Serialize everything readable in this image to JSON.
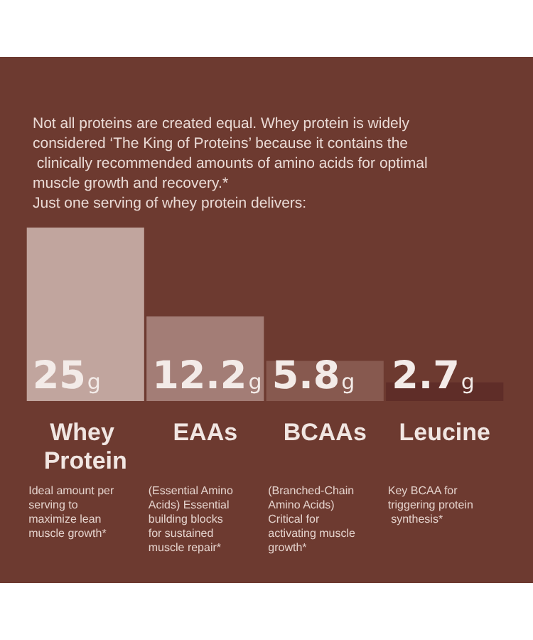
{
  "chart_data": {
    "type": "bar",
    "title": "Not all proteins are created equal. Whey protein is widely considered ‘The King of Proteins’ because it contains the clinically recommended amounts of amino acids for optimal muscle growth and recovery.*\nJust one serving of whey protein delivers:",
    "categories": [
      "Whey Protein",
      "EAAs",
      "BCAAs",
      "Leucine"
    ],
    "values": [
      25,
      12.2,
      5.8,
      2.7
    ],
    "colors": [
      "#c1a59e",
      "#a37d76",
      "#87594f",
      "#5f2d28"
    ],
    "value_labels": [
      "25g",
      "12.2g",
      "5.8g",
      "2.7g"
    ],
    "annotations": [
      "Ideal amount per serving to maximize lean muscle growth*",
      "(Essential Amino Acids) Essential building blocks for sustained muscle repair*",
      "(Branched-Chain Amino Acids) Critical for activating muscle growth*",
      "Key BCAA for triggering protein synthesis*"
    ],
    "grid": false
  }
}
